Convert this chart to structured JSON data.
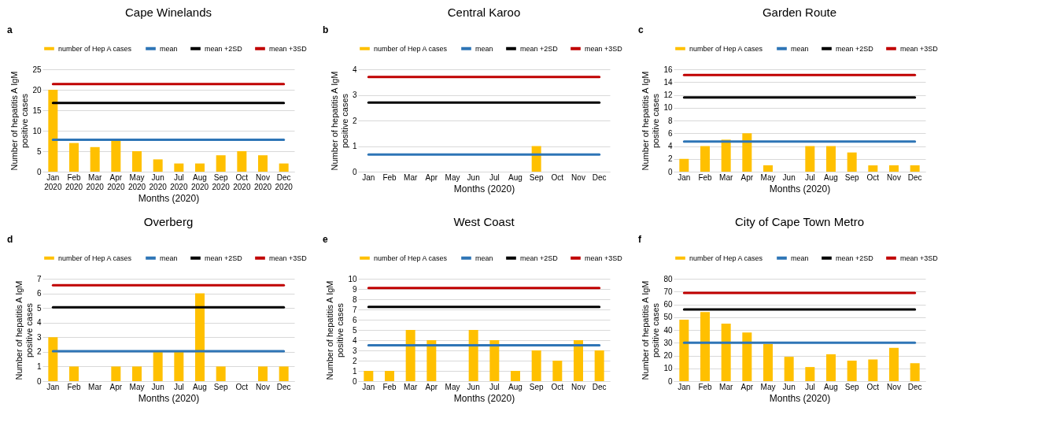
{
  "chart_data": [
    {
      "type": "bar",
      "title": "Cape Winelands",
      "xlabel": "Months (2020)",
      "ylabel": "Number of hepatitis A IgM positive cases",
      "annotations": [
        "a"
      ],
      "legend": "top",
      "grid": "y",
      "categories": [
        "Jan 2020",
        "Feb 2020",
        "Mar 2020",
        "Apr 2020",
        "May 2020",
        "Jun 2020",
        "Jul 2020",
        "Aug 2020",
        "Sep 2020",
        "Oct 2020",
        "Nov 2020",
        "Dec 2020"
      ],
      "ylim": [
        0,
        25
      ],
      "yticks": [
        0,
        5,
        10,
        15,
        20,
        25
      ],
      "series": [
        {
          "name": "number of Hep A cases",
          "color": "#ffc000",
          "values": [
            20,
            7,
            6,
            8,
            5,
            3,
            2,
            2,
            4,
            5,
            4,
            2
          ]
        },
        {
          "name": "mean",
          "type": "line",
          "color": "#2e75b6",
          "values": [
            7.8,
            7.8,
            7.8,
            7.8,
            7.8,
            7.8,
            7.8,
            7.8,
            7.8,
            7.8,
            7.8,
            7.8
          ]
        },
        {
          "name": "mean +2SD",
          "type": "line",
          "color": "#000000",
          "values": [
            16.8,
            16.8,
            16.8,
            16.8,
            16.8,
            16.8,
            16.8,
            16.8,
            16.8,
            16.8,
            16.8,
            16.8
          ]
        },
        {
          "name": "mean +3SD",
          "type": "line",
          "color": "#c00000",
          "values": [
            21.4,
            21.4,
            21.4,
            21.4,
            21.4,
            21.4,
            21.4,
            21.4,
            21.4,
            21.4,
            21.4,
            21.4
          ]
        }
      ]
    },
    {
      "type": "bar",
      "title": "Central Karoo",
      "xlabel": "Months (2020)",
      "ylabel": "Number of hepatitis A IgM positive cases",
      "annotations": [
        "b"
      ],
      "legend": "top",
      "grid": "y",
      "categories": [
        "Jan",
        "Feb",
        "Mar",
        "Apr",
        "May",
        "Jun",
        "Jul",
        "Aug",
        "Sep",
        "Oct",
        "Nov",
        "Dec"
      ],
      "ylim": [
        0,
        4
      ],
      "yticks": [
        0,
        1,
        2,
        3,
        4
      ],
      "series": [
        {
          "name": "number of Hep A cases",
          "color": "#ffc000",
          "values": [
            0,
            0,
            0,
            0,
            0,
            0,
            0,
            0,
            1,
            0,
            0,
            0
          ]
        },
        {
          "name": "mean",
          "type": "line",
          "color": "#2e75b6",
          "values": [
            0.67,
            0.67,
            0.67,
            0.67,
            0.67,
            0.67,
            0.67,
            0.67,
            0.67,
            0.67,
            0.67,
            0.67
          ]
        },
        {
          "name": "mean +2SD",
          "type": "line",
          "color": "#000000",
          "values": [
            2.7,
            2.7,
            2.7,
            2.7,
            2.7,
            2.7,
            2.7,
            2.7,
            2.7,
            2.7,
            2.7,
            2.7
          ]
        },
        {
          "name": "mean +3SD",
          "type": "line",
          "color": "#c00000",
          "values": [
            3.7,
            3.7,
            3.7,
            3.7,
            3.7,
            3.7,
            3.7,
            3.7,
            3.7,
            3.7,
            3.7,
            3.7
          ]
        }
      ]
    },
    {
      "type": "bar",
      "title": "Garden Route",
      "xlabel": "Months (2020)",
      "ylabel": "Number of hepatitis A IgM positive cases",
      "annotations": [
        "c"
      ],
      "legend": "top",
      "grid": "y",
      "categories": [
        "Jan",
        "Feb",
        "Mar",
        "Apr",
        "May",
        "Jun",
        "Jul",
        "Aug",
        "Sep",
        "Oct",
        "Nov",
        "Dec"
      ],
      "ylim": [
        0,
        16
      ],
      "yticks": [
        0,
        2,
        4,
        6,
        8,
        10,
        12,
        14,
        16
      ],
      "series": [
        {
          "name": "number of Hep A cases",
          "color": "#ffc000",
          "values": [
            2,
            4,
            5,
            6,
            1,
            0,
            4,
            4,
            3,
            1,
            1,
            1
          ]
        },
        {
          "name": "mean",
          "type": "line",
          "color": "#2e75b6",
          "values": [
            4.7,
            4.7,
            4.7,
            4.7,
            4.7,
            4.7,
            4.7,
            4.7,
            4.7,
            4.7,
            4.7,
            4.7
          ]
        },
        {
          "name": "mean +2SD",
          "type": "line",
          "color": "#000000",
          "values": [
            11.6,
            11.6,
            11.6,
            11.6,
            11.6,
            11.6,
            11.6,
            11.6,
            11.6,
            11.6,
            11.6,
            11.6
          ]
        },
        {
          "name": "mean +3SD",
          "type": "line",
          "color": "#c00000",
          "values": [
            15.1,
            15.1,
            15.1,
            15.1,
            15.1,
            15.1,
            15.1,
            15.1,
            15.1,
            15.1,
            15.1,
            15.1
          ]
        }
      ]
    },
    {
      "type": "bar",
      "title": "Overberg",
      "xlabel": "Months (2020)",
      "ylabel": "Number of hepatitis A IgM positive cases",
      "annotations": [
        "d"
      ],
      "legend": "top",
      "grid": "y",
      "categories": [
        "Jan",
        "Feb",
        "Mar",
        "Apr",
        "May",
        "Jun",
        "Jul",
        "Aug",
        "Sep",
        "Oct",
        "Nov",
        "Dec"
      ],
      "ylim": [
        0,
        7
      ],
      "yticks": [
        0,
        1,
        2,
        3,
        4,
        5,
        6,
        7
      ],
      "series": [
        {
          "name": "number of Hep A cases",
          "color": "#ffc000",
          "values": [
            3,
            1,
            0,
            1,
            1,
            2,
            2,
            6,
            1,
            0,
            1,
            1
          ]
        },
        {
          "name": "mean",
          "type": "line",
          "color": "#2e75b6",
          "values": [
            2.05,
            2.05,
            2.05,
            2.05,
            2.05,
            2.05,
            2.05,
            2.05,
            2.05,
            2.05,
            2.05,
            2.05
          ]
        },
        {
          "name": "mean +2SD",
          "type": "line",
          "color": "#000000",
          "values": [
            5.05,
            5.05,
            5.05,
            5.05,
            5.05,
            5.05,
            5.05,
            5.05,
            5.05,
            5.05,
            5.05,
            5.05
          ]
        },
        {
          "name": "mean +3SD",
          "type": "line",
          "color": "#c00000",
          "values": [
            6.55,
            6.55,
            6.55,
            6.55,
            6.55,
            6.55,
            6.55,
            6.55,
            6.55,
            6.55,
            6.55,
            6.55
          ]
        }
      ]
    },
    {
      "type": "bar",
      "title": "West Coast",
      "xlabel": "Months (2020)",
      "ylabel": "Number of hepatitis A IgM positive cases",
      "annotations": [
        "e"
      ],
      "legend": "top",
      "grid": "y",
      "categories": [
        "Jan",
        "Feb",
        "Mar",
        "Apr",
        "May",
        "Jun",
        "Jul",
        "Aug",
        "Sep",
        "Oct",
        "Nov",
        "Dec"
      ],
      "ylim": [
        0,
        10
      ],
      "yticks": [
        0,
        1,
        2,
        3,
        4,
        5,
        6,
        7,
        8,
        9,
        10
      ],
      "series": [
        {
          "name": "number of Hep A cases",
          "color": "#ffc000",
          "values": [
            1,
            1,
            5,
            4,
            0,
            5,
            4,
            1,
            3,
            2,
            4,
            3
          ]
        },
        {
          "name": "mean",
          "type": "line",
          "color": "#2e75b6",
          "values": [
            3.5,
            3.5,
            3.5,
            3.5,
            3.5,
            3.5,
            3.5,
            3.5,
            3.5,
            3.5,
            3.5,
            3.5
          ]
        },
        {
          "name": "mean +2SD",
          "type": "line",
          "color": "#000000",
          "values": [
            7.25,
            7.25,
            7.25,
            7.25,
            7.25,
            7.25,
            7.25,
            7.25,
            7.25,
            7.25,
            7.25,
            7.25
          ]
        },
        {
          "name": "mean +3SD",
          "type": "line",
          "color": "#c00000",
          "values": [
            9.1,
            9.1,
            9.1,
            9.1,
            9.1,
            9.1,
            9.1,
            9.1,
            9.1,
            9.1,
            9.1,
            9.1
          ]
        }
      ]
    },
    {
      "type": "bar",
      "title": "City of Cape Town Metro",
      "xlabel": "Months (2020)",
      "ylabel": "Number of hepatitis A IgM positive cases",
      "annotations": [
        "f"
      ],
      "legend": "top",
      "grid": "y",
      "categories": [
        "Jan",
        "Feb",
        "Mar",
        "Apr",
        "May",
        "Jun",
        "Jul",
        "Aug",
        "Sep",
        "Oct",
        "Nov",
        "Dec"
      ],
      "ylim": [
        0,
        80
      ],
      "yticks": [
        0,
        10,
        20,
        30,
        40,
        50,
        60,
        70,
        80
      ],
      "series": [
        {
          "name": "number of Hep A cases",
          "color": "#ffc000",
          "values": [
            48,
            54,
            45,
            38,
            29,
            19,
            11,
            21,
            16,
            17,
            26,
            14
          ]
        },
        {
          "name": "mean",
          "type": "line",
          "color": "#2e75b6",
          "values": [
            30,
            30,
            30,
            30,
            30,
            30,
            30,
            30,
            30,
            30,
            30,
            30
          ]
        },
        {
          "name": "mean +2SD",
          "type": "line",
          "color": "#000000",
          "values": [
            56,
            56,
            56,
            56,
            56,
            56,
            56,
            56,
            56,
            56,
            56,
            56
          ]
        },
        {
          "name": "mean +3SD",
          "type": "line",
          "color": "#c00000",
          "values": [
            69,
            69,
            69,
            69,
            69,
            69,
            69,
            69,
            69,
            69,
            69,
            69
          ]
        }
      ]
    }
  ]
}
